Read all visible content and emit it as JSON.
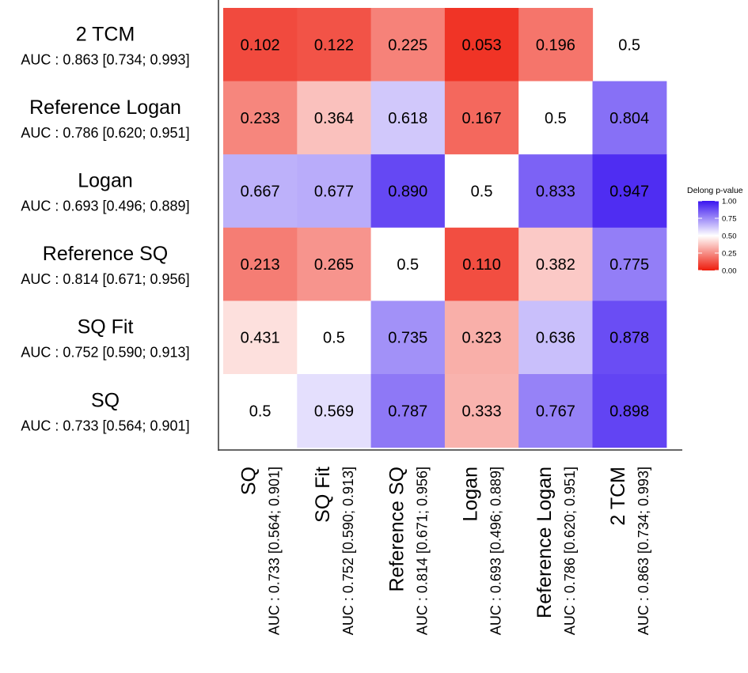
{
  "chart_data": {
    "type": "heatmap",
    "title": "",
    "xlabel": "",
    "ylabel": "",
    "models": [
      {
        "name": "SQ",
        "auc": "AUC : 0.733 [0.564; 0.901]"
      },
      {
        "name": "SQ Fit",
        "auc": "AUC : 0.752 [0.590; 0.913]"
      },
      {
        "name": "Reference SQ",
        "auc": "AUC : 0.814 [0.671; 0.956]"
      },
      {
        "name": "Logan",
        "auc": "AUC : 0.693 [0.496; 0.889]"
      },
      {
        "name": "Reference Logan",
        "auc": "AUC : 0.786 [0.620; 0.951]"
      },
      {
        "name": "2 TCM",
        "auc": "AUC : 0.863 [0.734; 0.993]"
      }
    ],
    "x_order": [
      "SQ",
      "SQ Fit",
      "Reference SQ",
      "Logan",
      "Reference Logan",
      "2 TCM"
    ],
    "y_order_top_to_bottom": [
      "2 TCM",
      "Reference Logan",
      "Logan",
      "Reference SQ",
      "SQ Fit",
      "SQ"
    ],
    "rows": [
      {
        "row": "2 TCM",
        "values": [
          0.102,
          0.122,
          0.225,
          0.053,
          0.196,
          0.5
        ],
        "labels": [
          "0.102",
          "0.122",
          "0.225",
          "0.053",
          "0.196",
          "0.5"
        ]
      },
      {
        "row": "Reference Logan",
        "values": [
          0.233,
          0.364,
          0.618,
          0.167,
          0.5,
          0.804
        ],
        "labels": [
          "0.233",
          "0.364",
          "0.618",
          "0.167",
          "0.5",
          "0.804"
        ]
      },
      {
        "row": "Logan",
        "values": [
          0.667,
          0.677,
          0.89,
          0.5,
          0.833,
          0.947
        ],
        "labels": [
          "0.667",
          "0.677",
          "0.890",
          "0.5",
          "0.833",
          "0.947"
        ]
      },
      {
        "row": "Reference SQ",
        "values": [
          0.213,
          0.265,
          0.5,
          0.11,
          0.382,
          0.775
        ],
        "labels": [
          "0.213",
          "0.265",
          "0.5",
          "0.110",
          "0.382",
          "0.775"
        ]
      },
      {
        "row": "SQ Fit",
        "values": [
          0.431,
          0.5,
          0.735,
          0.323,
          0.636,
          0.878
        ],
        "labels": [
          "0.431",
          "0.5",
          "0.735",
          "0.323",
          "0.636",
          "0.878"
        ]
      },
      {
        "row": "SQ",
        "values": [
          0.5,
          0.569,
          0.787,
          0.333,
          0.767,
          0.898
        ],
        "labels": [
          "0.5",
          "0.569",
          "0.787",
          "0.333",
          "0.767",
          "0.898"
        ]
      }
    ],
    "no_fill_cells": [
      [
        0,
        5
      ]
    ],
    "color_scale": {
      "low": "#ee1c0c",
      "mid": "#ffffff",
      "high": "#3a14f0",
      "midpoint": 0.5,
      "limits": [
        0,
        1
      ]
    },
    "legend": {
      "title": "Delong p-value",
      "ticks": [
        "0.00",
        "0.25",
        "0.50",
        "0.75",
        "1.00"
      ],
      "position": "right"
    }
  }
}
